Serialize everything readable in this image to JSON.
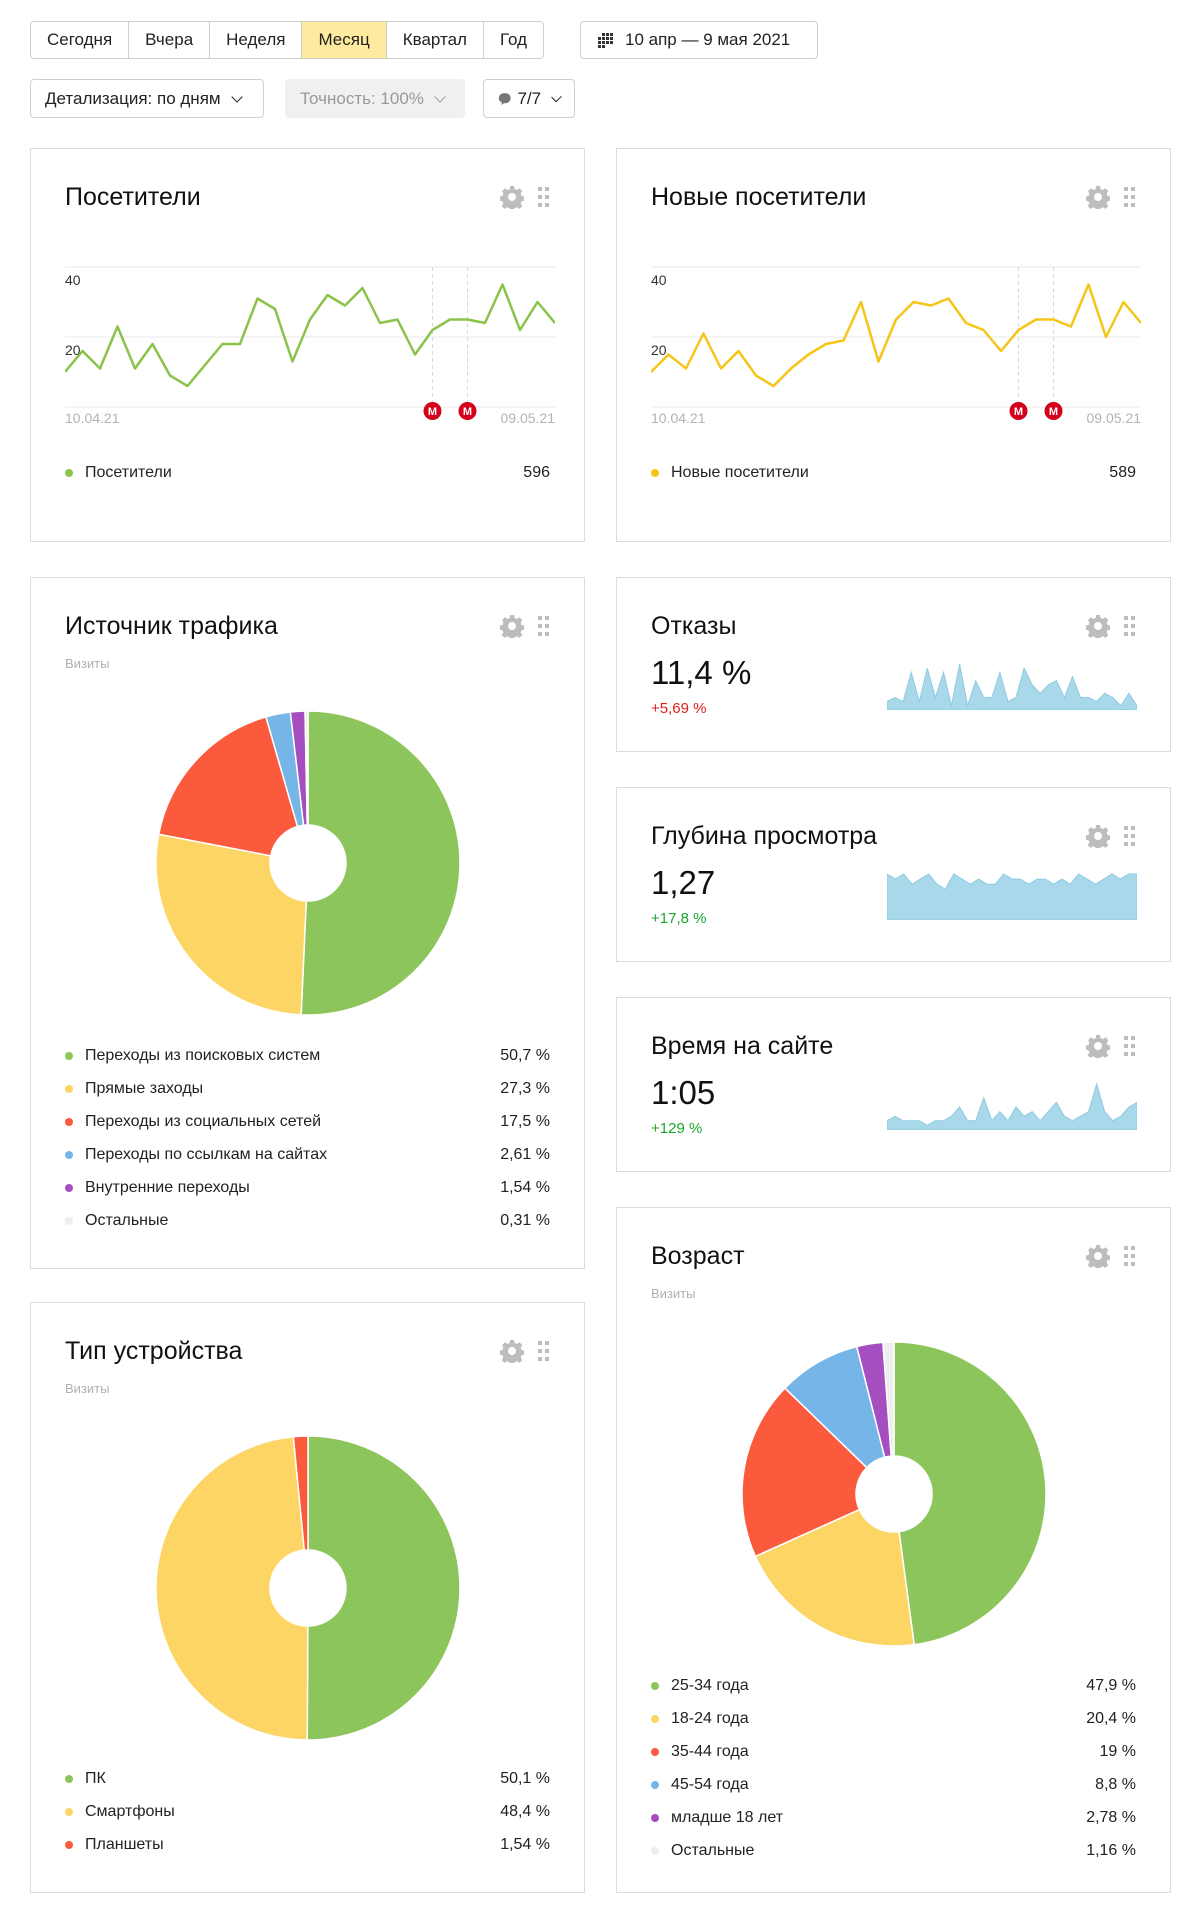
{
  "periods": [
    {
      "label": "Сегодня",
      "active": false
    },
    {
      "label": "Вчера",
      "active": false
    },
    {
      "label": "Неделя",
      "active": false
    },
    {
      "label": "Месяц",
      "active": true
    },
    {
      "label": "Квартал",
      "active": false
    },
    {
      "label": "Год",
      "active": false
    }
  ],
  "date_range": {
    "label": "10 апр — 9 мая 2021",
    "icon": "calendar-icon"
  },
  "detail": {
    "label": "Детализация: по дням"
  },
  "accuracy": {
    "label": "Точность: 100%"
  },
  "segment": {
    "label": "7/7"
  },
  "widgets": {
    "visitors": {
      "title": "Посетители",
      "legend_name": "Посетители",
      "legend_value": "596",
      "color": "#8bc34a"
    },
    "new_visitors": {
      "title": "Новые посетители",
      "legend_name": "Новые посетители",
      "legend_value": "589",
      "color": "#f5c518"
    },
    "traffic": {
      "title": "Источник трафика",
      "subtitle": "Визиты"
    },
    "bounce": {
      "title": "Отказы",
      "value": "11,4 %",
      "delta": "+5,69 %",
      "delta_color": "#e01c1c"
    },
    "depth": {
      "title": "Глубина просмотра",
      "value": "1,27",
      "delta": "+17,8 %",
      "delta_color": "#1aa530"
    },
    "time": {
      "title": "Время на сайте",
      "value": "1:05",
      "delta": "+129 %",
      "delta_color": "#1aa530"
    },
    "device": {
      "title": "Тип устройства",
      "subtitle": "Визиты"
    },
    "age": {
      "title": "Возраст",
      "subtitle": "Визиты"
    }
  },
  "chart_data": [
    {
      "type": "line",
      "title": "Посетители",
      "x_start": "10.04.21",
      "x_end": "09.05.21",
      "x_ticks": [
        "10.04.21",
        "09.05.21"
      ],
      "y_ticks": [
        "40",
        "20"
      ],
      "ylim": [
        0,
        40
      ],
      "series": [
        {
          "name": "Посетители",
          "color": "#8bc34a",
          "values": [
            10,
            16,
            11,
            23,
            11,
            18,
            9,
            6,
            12,
            18,
            18,
            31,
            28,
            13,
            25,
            32,
            29,
            34,
            24,
            25,
            15,
            22,
            25,
            25,
            24,
            35,
            22,
            30,
            24
          ]
        }
      ],
      "annotations": [
        {
          "x": 21,
          "label": "М"
        },
        {
          "x": 23,
          "label": "М"
        },
        {
          "x": 29,
          "label": "М"
        }
      ]
    },
    {
      "type": "line",
      "title": "Новые посетители",
      "x_start": "10.04.21",
      "x_end": "09.05.21",
      "x_ticks": [
        "10.04.21",
        "09.05.21"
      ],
      "y_ticks": [
        "40",
        "20"
      ],
      "ylim": [
        0,
        40
      ],
      "series": [
        {
          "name": "Новые посетители",
          "color": "#f5c518",
          "values": [
            10,
            15,
            11,
            21,
            11,
            16,
            9,
            6,
            11,
            15,
            18,
            19,
            30,
            13,
            25,
            30,
            29,
            31,
            24,
            22,
            16,
            22,
            25,
            25,
            23,
            35,
            20,
            30,
            24
          ]
        }
      ],
      "annotations": [
        {
          "x": 21,
          "label": "М"
        },
        {
          "x": 23,
          "label": "М"
        },
        {
          "x": 29,
          "label": "М"
        }
      ]
    },
    {
      "type": "pie",
      "title": "Источник трафика",
      "slices": [
        {
          "label": "Переходы из поисковых систем",
          "value": 50.7,
          "display": "50,7 %",
          "color": "#8cc55c"
        },
        {
          "label": "Прямые заходы",
          "value": 27.3,
          "display": "27,3 %",
          "color": "#fcd564"
        },
        {
          "label": "Переходы из социальных сетей",
          "value": 17.5,
          "display": "17,5 %",
          "color": "#fb5a3c"
        },
        {
          "label": "Переходы по ссылкам на сайтах",
          "value": 2.61,
          "display": "2,61 %",
          "color": "#75b5e8"
        },
        {
          "label": "Внутренние переходы",
          "value": 1.54,
          "display": "1,54 %",
          "color": "#a54ec0"
        },
        {
          "label": "Остальные",
          "value": 0.31,
          "display": "0,31 %",
          "color": "#eeeeee"
        }
      ]
    },
    {
      "type": "area",
      "title": "Отказы",
      "color": "#a8d8ea",
      "values": [
        2,
        3,
        2,
        9,
        2,
        10,
        3,
        9,
        1,
        11,
        1,
        7,
        3,
        3,
        9,
        2,
        3,
        10,
        6,
        4,
        6,
        7,
        3,
        8,
        3,
        3,
        2,
        4,
        3,
        1,
        4,
        1
      ]
    },
    {
      "type": "area",
      "title": "Глубина просмотра",
      "color": "#a8d8ea",
      "values": [
        9,
        8,
        9,
        7,
        8,
        9,
        7,
        6,
        9,
        8,
        7,
        8,
        7,
        7,
        9,
        8,
        8,
        7,
        8,
        8,
        7,
        8,
        7,
        9,
        8,
        7,
        8,
        9,
        8,
        9,
        9
      ]
    },
    {
      "type": "area",
      "title": "Время на сайте",
      "color": "#a8d8ea",
      "values": [
        2,
        3,
        2,
        2,
        2,
        1,
        2,
        2,
        3,
        5,
        2,
        2,
        7,
        2,
        4,
        2,
        5,
        3,
        4,
        2,
        4,
        6,
        3,
        2,
        3,
        4,
        10,
        4,
        2,
        3,
        5,
        6
      ]
    },
    {
      "type": "pie",
      "title": "Тип устройства",
      "slices": [
        {
          "label": "ПК",
          "value": 50.1,
          "display": "50,1 %",
          "color": "#8cc55c"
        },
        {
          "label": "Смартфоны",
          "value": 48.4,
          "display": "48,4 %",
          "color": "#fcd564"
        },
        {
          "label": "Планшеты",
          "value": 1.54,
          "display": "1,54 %",
          "color": "#fb5a3c"
        }
      ]
    },
    {
      "type": "pie",
      "title": "Возраст",
      "slices": [
        {
          "label": "25-34 года",
          "value": 47.9,
          "display": "47,9 %",
          "color": "#8cc55c"
        },
        {
          "label": "18-24 года",
          "value": 20.4,
          "display": "20,4 %",
          "color": "#fcd564"
        },
        {
          "label": "35-44 года",
          "value": 19,
          "display": "19 %",
          "color": "#fb5a3c"
        },
        {
          "label": "45-54 года",
          "value": 8.8,
          "display": "8,8 %",
          "color": "#75b5e8"
        },
        {
          "label": "младше 18 лет",
          "value": 2.78,
          "display": "2,78 %",
          "color": "#a54ec0"
        },
        {
          "label": "Остальные",
          "value": 1.16,
          "display": "1,16 %",
          "color": "#eeeeee"
        }
      ]
    }
  ]
}
